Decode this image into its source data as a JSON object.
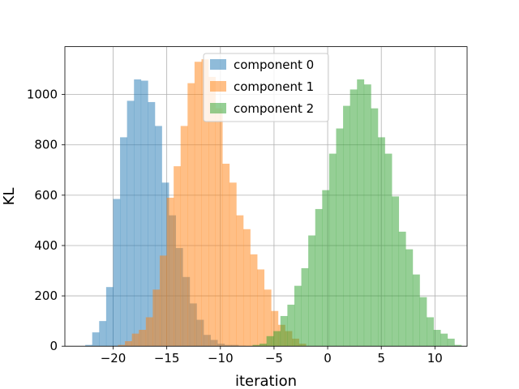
{
  "chart_data": {
    "type": "bar",
    "subtype": "histogram",
    "xlabel": "iteration",
    "ylabel": "KL",
    "xlim": [
      -24.5,
      13.0
    ],
    "ylim": [
      0,
      1190
    ],
    "xticks": [
      -20,
      -15,
      -10,
      -5,
      0,
      5,
      10
    ],
    "xtick_labels": [
      "−20",
      "−15",
      "−10",
      "−5",
      "0",
      "5",
      "10"
    ],
    "yticks": [
      0,
      200,
      400,
      600,
      800,
      1000
    ],
    "ytick_labels": [
      "0",
      "200",
      "400",
      "600",
      "800",
      "1000"
    ],
    "grid": true,
    "legend_position": "top-center",
    "series": [
      {
        "name": "component 0",
        "color": "#1f77b4",
        "alpha": 0.5,
        "bin_start": -22.6,
        "bin_width": 0.649,
        "counts": [
          5,
          55,
          100,
          235,
          585,
          830,
          975,
          1060,
          1055,
          970,
          875,
          650,
          520,
          390,
          275,
          170,
          105,
          45,
          25,
          10,
          5,
          5,
          2
        ]
      },
      {
        "name": "component 1",
        "color": "#ff7f0e",
        "alpha": 0.5,
        "bin_start": -19.55,
        "bin_width": 0.649,
        "counts": [
          5,
          20,
          50,
          65,
          115,
          225,
          360,
          590,
          715,
          875,
          1045,
          1130,
          1140,
          1070,
          945,
          725,
          650,
          520,
          465,
          365,
          305,
          225,
          140,
          85,
          60,
          30,
          10
        ]
      },
      {
        "name": "component 2",
        "color": "#2ca02c",
        "alpha": 0.5,
        "bin_start": -7.0,
        "bin_width": 0.649,
        "counts": [
          5,
          10,
          40,
          60,
          120,
          165,
          240,
          310,
          440,
          545,
          620,
          765,
          865,
          955,
          1020,
          1060,
          1040,
          945,
          830,
          765,
          595,
          455,
          385,
          285,
          195,
          115,
          65,
          50,
          30,
          5
        ]
      }
    ]
  }
}
